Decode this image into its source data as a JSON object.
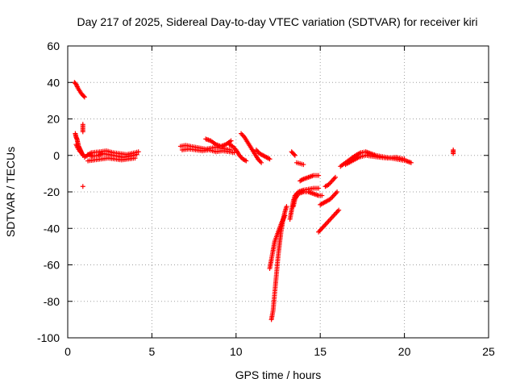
{
  "chart_data": {
    "type": "scatter",
    "title": "Day 217 of 2025, Sidereal Day-to-day VTEC variation (SDTVAR) for receiver kiri",
    "xlabel": "GPS time / hours",
    "ylabel": "SDTVAR / TECUs",
    "xlim": [
      0,
      25
    ],
    "ylim": [
      -100,
      60
    ],
    "xticks": [
      0,
      5,
      10,
      15,
      20,
      25
    ],
    "yticks": [
      -100,
      -80,
      -60,
      -40,
      -20,
      0,
      20,
      40,
      60
    ],
    "grid": true,
    "legend": "none",
    "marker": "plus",
    "color": "#ff0000",
    "segments": [
      [
        [
          0.4,
          40
        ],
        [
          0.5,
          39
        ],
        [
          0.6,
          37
        ],
        [
          0.7,
          35.5
        ],
        [
          0.8,
          34
        ],
        [
          0.9,
          33
        ],
        [
          1.0,
          32
        ]
      ],
      [
        [
          0.45,
          12
        ],
        [
          0.5,
          10
        ],
        [
          0.55,
          9
        ],
        [
          0.6,
          7
        ],
        [
          0.65,
          5
        ],
        [
          0.7,
          4
        ],
        [
          0.75,
          3
        ],
        [
          0.8,
          2
        ],
        [
          0.85,
          1
        ],
        [
          0.9,
          0.5
        ]
      ],
      [
        [
          0.5,
          6
        ],
        [
          0.6,
          4
        ],
        [
          0.7,
          2.5
        ],
        [
          0.8,
          1.5
        ],
        [
          0.9,
          0
        ]
      ],
      [
        [
          1.2,
          0.5
        ],
        [
          1.5,
          -0.5
        ],
        [
          1.8,
          0
        ],
        [
          2.1,
          1
        ],
        [
          2.4,
          0.5
        ],
        [
          2.7,
          0
        ],
        [
          3.0,
          -0.5
        ],
        [
          3.3,
          -1
        ],
        [
          3.6,
          -0.5
        ],
        [
          3.9,
          0
        ],
        [
          4.1,
          0.5
        ]
      ],
      [
        [
          1.2,
          -3
        ],
        [
          1.6,
          -2.5
        ],
        [
          2.0,
          -2
        ],
        [
          2.4,
          -1.5
        ],
        [
          2.8,
          -2
        ],
        [
          3.2,
          -2.5
        ],
        [
          3.6,
          -2
        ],
        [
          4.0,
          -1.5
        ]
      ],
      [
        [
          1.0,
          -1
        ],
        [
          1.4,
          1.5
        ],
        [
          1.9,
          2
        ],
        [
          2.3,
          2.5
        ],
        [
          2.7,
          1.5
        ],
        [
          3.1,
          1
        ],
        [
          3.5,
          0.5
        ],
        [
          4.0,
          1.5
        ],
        [
          4.2,
          2
        ]
      ],
      [
        [
          6.7,
          5
        ],
        [
          7.0,
          5.5
        ],
        [
          7.3,
          5
        ],
        [
          7.6,
          4.5
        ],
        [
          7.9,
          4
        ],
        [
          8.2,
          3.5
        ],
        [
          8.5,
          4
        ],
        [
          8.8,
          4.5
        ],
        [
          9.1,
          4
        ],
        [
          9.4,
          3.5
        ],
        [
          9.7,
          3
        ]
      ],
      [
        [
          6.8,
          3
        ],
        [
          7.2,
          3.5
        ],
        [
          7.6,
          3
        ],
        [
          8.0,
          2.5
        ],
        [
          8.4,
          3
        ],
        [
          8.8,
          2
        ],
        [
          9.2,
          2.5
        ],
        [
          9.6,
          2
        ],
        [
          9.9,
          1.5
        ]
      ],
      [
        [
          8.2,
          9
        ],
        [
          8.5,
          8
        ],
        [
          8.8,
          6
        ],
        [
          9.1,
          5
        ],
        [
          9.4,
          6
        ],
        [
          9.7,
          8
        ]
      ],
      [
        [
          9.6,
          6
        ],
        [
          9.8,
          5
        ],
        [
          10.0,
          3
        ],
        [
          10.2,
          0
        ],
        [
          10.4,
          -2
        ],
        [
          10.6,
          -3
        ]
      ],
      [
        [
          10.3,
          12
        ],
        [
          10.5,
          10
        ],
        [
          10.7,
          7
        ],
        [
          10.9,
          4
        ],
        [
          11.1,
          1
        ],
        [
          11.3,
          -2
        ],
        [
          11.5,
          -4
        ]
      ],
      [
        [
          11.2,
          3
        ],
        [
          11.4,
          1
        ],
        [
          11.6,
          0
        ],
        [
          11.8,
          -1
        ],
        [
          12.0,
          -2
        ]
      ],
      [
        [
          12.1,
          -90
        ],
        [
          12.2,
          -85
        ],
        [
          12.3,
          -75
        ],
        [
          12.4,
          -65
        ],
        [
          12.5,
          -55
        ],
        [
          12.6,
          -47
        ],
        [
          12.7,
          -40
        ],
        [
          12.8,
          -35
        ],
        [
          12.9,
          -31
        ],
        [
          13.0,
          -28
        ]
      ],
      [
        [
          12.0,
          -62
        ],
        [
          12.1,
          -57
        ],
        [
          12.2,
          -52
        ],
        [
          12.3,
          -47
        ],
        [
          12.5,
          -42
        ],
        [
          12.7,
          -37
        ],
        [
          12.9,
          -33
        ]
      ],
      [
        [
          13.2,
          -35
        ],
        [
          13.3,
          -30
        ],
        [
          13.4,
          -25
        ],
        [
          13.5,
          -22
        ],
        [
          13.7,
          -20
        ],
        [
          14.0,
          -19
        ],
        [
          14.3,
          -18.5
        ],
        [
          14.6,
          -18
        ],
        [
          14.9,
          -18
        ]
      ],
      [
        [
          13.4,
          -28
        ],
        [
          13.5,
          -24
        ],
        [
          13.7,
          -21
        ],
        [
          14.0,
          -20
        ],
        [
          14.3,
          -20
        ],
        [
          14.6,
          -21
        ],
        [
          14.9,
          -22
        ],
        [
          15.1,
          -22
        ]
      ],
      [
        [
          13.8,
          -14
        ],
        [
          14.0,
          -13
        ],
        [
          14.3,
          -12
        ],
        [
          14.6,
          -11
        ],
        [
          14.9,
          -11
        ]
      ],
      [
        [
          13.3,
          2
        ],
        [
          13.4,
          1
        ],
        [
          13.5,
          0
        ]
      ],
      [
        [
          13.6,
          -4
        ],
        [
          13.8,
          -4.5
        ],
        [
          14.0,
          -5
        ]
      ],
      [
        [
          14.9,
          -42
        ],
        [
          15.1,
          -40
        ],
        [
          15.3,
          -38
        ],
        [
          15.5,
          -36
        ],
        [
          15.7,
          -34
        ],
        [
          15.9,
          -32
        ],
        [
          16.1,
          -30
        ]
      ],
      [
        [
          15.0,
          -27
        ],
        [
          15.2,
          -26
        ],
        [
          15.4,
          -25
        ],
        [
          15.6,
          -24
        ],
        [
          15.8,
          -22
        ],
        [
          16.0,
          -20
        ]
      ],
      [
        [
          15.3,
          -17
        ],
        [
          15.5,
          -16
        ],
        [
          15.7,
          -14
        ],
        [
          15.9,
          -12
        ]
      ],
      [
        [
          16.2,
          -6
        ],
        [
          16.5,
          -4
        ],
        [
          16.8,
          -2
        ],
        [
          17.1,
          0
        ],
        [
          17.4,
          1.5
        ],
        [
          17.7,
          2
        ],
        [
          18.0,
          1
        ],
        [
          18.3,
          0
        ],
        [
          18.6,
          -0.5
        ],
        [
          18.9,
          -1
        ],
        [
          19.2,
          -1.5
        ],
        [
          19.5,
          -2
        ],
        [
          19.8,
          -2.5
        ],
        [
          20.1,
          -3
        ],
        [
          20.4,
          -4
        ]
      ],
      [
        [
          16.5,
          -5
        ],
        [
          16.9,
          -3
        ],
        [
          17.3,
          -1
        ],
        [
          17.7,
          0
        ],
        [
          18.1,
          -0.5
        ],
        [
          18.5,
          -1
        ],
        [
          19.0,
          -1.5
        ],
        [
          19.5,
          -1
        ],
        [
          20.0,
          -2
        ]
      ],
      [
        [
          22.9,
          3
        ],
        [
          22.9,
          1
        ]
      ],
      [
        [
          0.9,
          17
        ],
        [
          0.9,
          13
        ]
      ],
      [
        [
          0.9,
          -17
        ]
      ]
    ]
  }
}
